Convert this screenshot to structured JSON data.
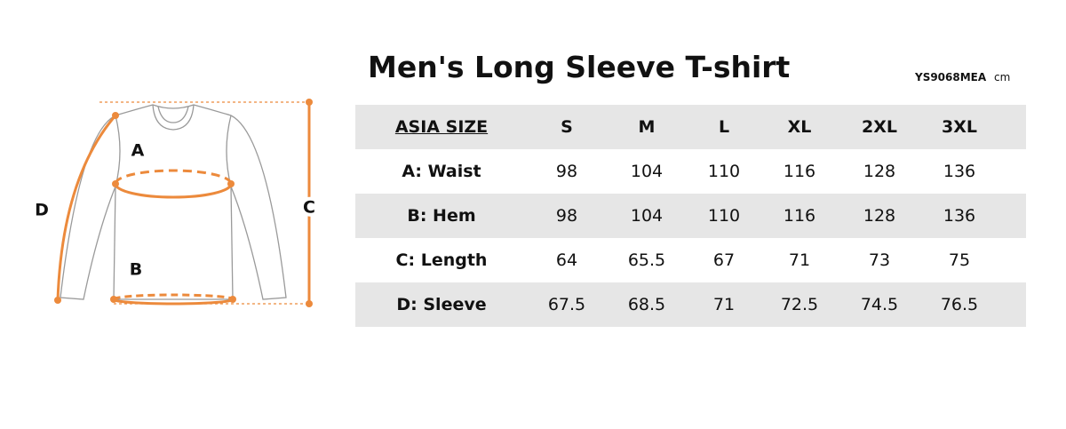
{
  "header": {
    "title": "Men's Long Sleeve T-shirt",
    "code": "YS9068MEA",
    "unit": "cm"
  },
  "diagram": {
    "labels": [
      "A",
      "B",
      "C",
      "D"
    ]
  },
  "table": {
    "columns": [
      "ASIA SIZE",
      "S",
      "M",
      "L",
      "XL",
      "2XL",
      "3XL"
    ],
    "rows": [
      [
        "A: Waist",
        98,
        104,
        110,
        116,
        128,
        136
      ],
      [
        "B: Hem",
        98,
        104,
        110,
        116,
        128,
        136
      ],
      [
        "C: Length",
        64,
        65.5,
        67,
        71,
        73,
        75
      ],
      [
        "D: Sleeve",
        67.5,
        68.5,
        71,
        72.5,
        74.5,
        76.5
      ]
    ]
  }
}
